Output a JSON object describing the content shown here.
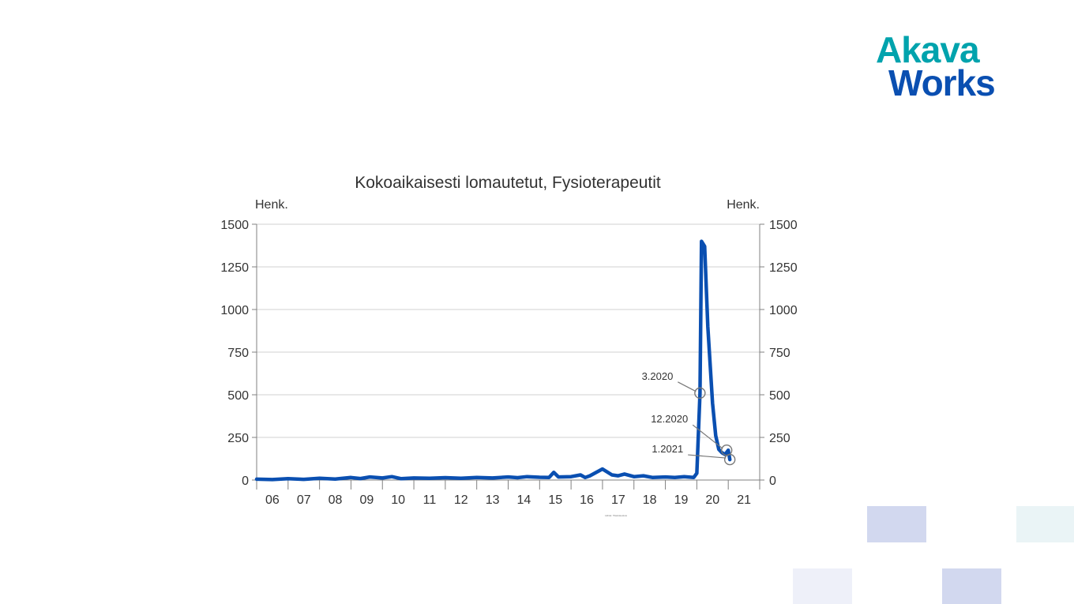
{
  "logo": {
    "line1": "Akava",
    "line2": "Works"
  },
  "colors": {
    "line": "#0a4fb1",
    "grid": "#d0d0d0",
    "axis": "#808080",
    "text": "#333333",
    "deco_blue": "#d2d8ef",
    "deco_light": "#eef0f9",
    "deco_teal": "#eaf4f6"
  },
  "chart_data": {
    "type": "line",
    "title": "Kokoaikaisesti lomautetut, Fysioterapeutit",
    "ylabel_left": "Henk.",
    "ylabel_right": "Henk.",
    "ylim": [
      0,
      1500
    ],
    "yticks": [
      "0",
      "250",
      "500",
      "750",
      "1000",
      "1250",
      "1500"
    ],
    "xlim": [
      2006.0,
      2022.0
    ],
    "xtick_labels": [
      "06",
      "07",
      "08",
      "09",
      "10",
      "11",
      "12",
      "13",
      "14",
      "15",
      "16",
      "17",
      "18",
      "19",
      "20",
      "21"
    ],
    "grid": true,
    "series": [
      {
        "x": [
          2006.0,
          2006.5,
          2007.0,
          2007.5,
          2008.0,
          2008.5,
          2009.0,
          2009.3,
          2009.6,
          2010.0,
          2010.3,
          2010.6,
          2011.0,
          2011.5,
          2012.0,
          2012.5,
          2013.0,
          2013.5,
          2014.0,
          2014.3,
          2014.6,
          2015.0,
          2015.3,
          2015.45,
          2015.6,
          2016.0,
          2016.3,
          2016.45,
          2016.6,
          2017.0,
          2017.3,
          2017.5,
          2017.7,
          2018.0,
          2018.3,
          2018.6,
          2019.0,
          2019.3,
          2019.6,
          2019.9,
          2020.0,
          2020.1,
          2020.15,
          2020.25,
          2020.35,
          2020.5,
          2020.6,
          2020.7,
          2020.8,
          2020.9,
          2021.0,
          2021.05
        ],
        "values": [
          5,
          3,
          8,
          4,
          10,
          6,
          15,
          9,
          18,
          12,
          20,
          8,
          12,
          10,
          14,
          10,
          15,
          12,
          18,
          14,
          20,
          16,
          15,
          45,
          18,
          20,
          30,
          15,
          25,
          65,
          30,
          25,
          35,
          20,
          25,
          15,
          18,
          15,
          20,
          15,
          40,
          510,
          1400,
          1370,
          900,
          450,
          260,
          180,
          160,
          150,
          175,
          120
        ]
      }
    ],
    "annotations": [
      {
        "label": "3.2020",
        "x": 2020.1,
        "y": 510
      },
      {
        "label": "12.2020",
        "x": 2020.95,
        "y": 175
      },
      {
        "label": "1.2021",
        "x": 2021.05,
        "y": 120
      }
    ],
    "source_note": "Lähde: Tilastokeskus"
  }
}
